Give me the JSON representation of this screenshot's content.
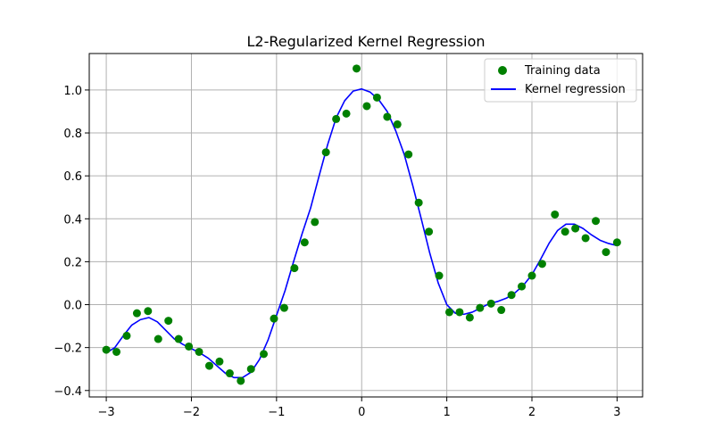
{
  "chart_data": {
    "type": "scatter+line",
    "title": "L2-Regularized Kernel Regression",
    "xlabel": "",
    "ylabel": "",
    "xlim": [
      -3.2,
      3.3
    ],
    "ylim": [
      -0.43,
      1.17
    ],
    "xticks": [
      -3,
      -2,
      -1,
      0,
      1,
      2,
      3
    ],
    "xtick_labels": [
      "−3",
      "−2",
      "−1",
      "0",
      "1",
      "2",
      "3"
    ],
    "yticks": [
      -0.4,
      -0.2,
      0.0,
      0.2,
      0.4,
      0.6,
      0.8,
      1.0
    ],
    "ytick_labels": [
      "−0.4",
      "−0.2",
      "0.0",
      "0.2",
      "0.4",
      "0.6",
      "0.8",
      "1.0"
    ],
    "grid": true,
    "legend_position": "top-right",
    "series": [
      {
        "name": "Training data",
        "kind": "scatter",
        "color": "#008000",
        "points": [
          [
            -3.0,
            -0.21
          ],
          [
            -2.88,
            -0.22
          ],
          [
            -2.76,
            -0.145
          ],
          [
            -2.64,
            -0.04
          ],
          [
            -2.51,
            -0.03
          ],
          [
            -2.39,
            -0.16
          ],
          [
            -2.27,
            -0.075
          ],
          [
            -2.15,
            -0.16
          ],
          [
            -2.03,
            -0.195
          ],
          [
            -1.91,
            -0.22
          ],
          [
            -1.79,
            -0.285
          ],
          [
            -1.67,
            -0.265
          ],
          [
            -1.55,
            -0.32
          ],
          [
            -1.42,
            -0.355
          ],
          [
            -1.3,
            -0.3
          ],
          [
            -1.15,
            -0.23
          ],
          [
            -1.03,
            -0.065
          ],
          [
            -0.91,
            -0.015
          ],
          [
            -0.79,
            0.17
          ],
          [
            -0.67,
            0.29
          ],
          [
            -0.55,
            0.385
          ],
          [
            -0.42,
            0.71
          ],
          [
            -0.3,
            0.865
          ],
          [
            -0.18,
            0.89
          ],
          [
            -0.06,
            1.1
          ],
          [
            0.06,
            0.925
          ],
          [
            0.18,
            0.965
          ],
          [
            0.3,
            0.875
          ],
          [
            0.42,
            0.84
          ],
          [
            0.55,
            0.7
          ],
          [
            0.67,
            0.475
          ],
          [
            0.79,
            0.34
          ],
          [
            0.91,
            0.135
          ],
          [
            1.03,
            -0.035
          ],
          [
            1.15,
            -0.035
          ],
          [
            1.27,
            -0.06
          ],
          [
            1.39,
            -0.015
          ],
          [
            1.52,
            0.005
          ],
          [
            1.64,
            -0.025
          ],
          [
            1.76,
            0.045
          ],
          [
            1.88,
            0.085
          ],
          [
            2.0,
            0.135
          ],
          [
            2.12,
            0.19
          ],
          [
            2.27,
            0.42
          ],
          [
            2.39,
            0.34
          ],
          [
            2.51,
            0.355
          ],
          [
            2.63,
            0.31
          ],
          [
            2.75,
            0.39
          ],
          [
            2.87,
            0.245
          ],
          [
            3.0,
            0.29
          ]
        ]
      },
      {
        "name": "Kernel regression",
        "kind": "line",
        "color": "#0000ff",
        "points": [
          [
            -3.0,
            -0.225
          ],
          [
            -2.9,
            -0.2
          ],
          [
            -2.8,
            -0.145
          ],
          [
            -2.7,
            -0.095
          ],
          [
            -2.6,
            -0.07
          ],
          [
            -2.5,
            -0.06
          ],
          [
            -2.4,
            -0.08
          ],
          [
            -2.3,
            -0.12
          ],
          [
            -2.2,
            -0.16
          ],
          [
            -2.1,
            -0.185
          ],
          [
            -2.0,
            -0.205
          ],
          [
            -1.9,
            -0.225
          ],
          [
            -1.8,
            -0.25
          ],
          [
            -1.7,
            -0.285
          ],
          [
            -1.6,
            -0.32
          ],
          [
            -1.5,
            -0.34
          ],
          [
            -1.4,
            -0.34
          ],
          [
            -1.3,
            -0.315
          ],
          [
            -1.2,
            -0.255
          ],
          [
            -1.1,
            -0.165
          ],
          [
            -1.0,
            -0.05
          ],
          [
            -0.9,
            0.065
          ],
          [
            -0.8,
            0.2
          ],
          [
            -0.7,
            0.33
          ],
          [
            -0.6,
            0.45
          ],
          [
            -0.5,
            0.6
          ],
          [
            -0.4,
            0.745
          ],
          [
            -0.3,
            0.87
          ],
          [
            -0.2,
            0.95
          ],
          [
            -0.1,
            0.995
          ],
          [
            0.0,
            1.005
          ],
          [
            0.1,
            0.99
          ],
          [
            0.2,
            0.955
          ],
          [
            0.3,
            0.9
          ],
          [
            0.4,
            0.81
          ],
          [
            0.5,
            0.7
          ],
          [
            0.6,
            0.555
          ],
          [
            0.7,
            0.4
          ],
          [
            0.8,
            0.24
          ],
          [
            0.9,
            0.1
          ],
          [
            1.0,
            0.0
          ],
          [
            1.1,
            -0.04
          ],
          [
            1.2,
            -0.045
          ],
          [
            1.3,
            -0.035
          ],
          [
            1.4,
            -0.015
          ],
          [
            1.5,
            0.005
          ],
          [
            1.6,
            0.015
          ],
          [
            1.7,
            0.03
          ],
          [
            1.8,
            0.055
          ],
          [
            1.9,
            0.09
          ],
          [
            2.0,
            0.14
          ],
          [
            2.1,
            0.21
          ],
          [
            2.2,
            0.285
          ],
          [
            2.3,
            0.345
          ],
          [
            2.4,
            0.375
          ],
          [
            2.5,
            0.375
          ],
          [
            2.6,
            0.355
          ],
          [
            2.7,
            0.325
          ],
          [
            2.8,
            0.3
          ],
          [
            2.9,
            0.285
          ],
          [
            3.0,
            0.275
          ]
        ]
      }
    ]
  },
  "colors": {
    "axis": "#000000",
    "grid": "#b0b0b0",
    "background": "#ffffff",
    "legend_border": "#cccccc"
  }
}
